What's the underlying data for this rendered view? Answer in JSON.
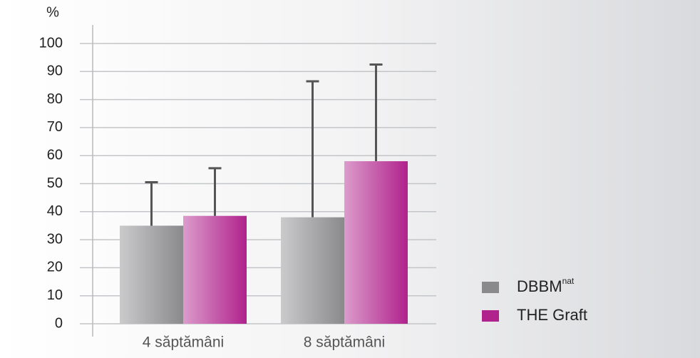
{
  "chart_data": {
    "type": "bar",
    "y_label": "%",
    "categories": [
      "4 săptămâni",
      "8 săptămâni"
    ],
    "series": [
      {
        "name": "DBBM",
        "name_sup": "nat",
        "color": "#8a8a8d",
        "values": [
          35,
          38
        ],
        "errors": [
          15.5,
          48.5
        ]
      },
      {
        "name": "THE Graft",
        "color": "#b0228c",
        "values": [
          38.5,
          58
        ],
        "errors": [
          17,
          34.5
        ]
      }
    ],
    "ylim": [
      0,
      100
    ],
    "yticks": [
      0,
      10,
      20,
      30,
      40,
      50,
      60,
      70,
      80,
      90,
      100
    ],
    "grid": true
  }
}
